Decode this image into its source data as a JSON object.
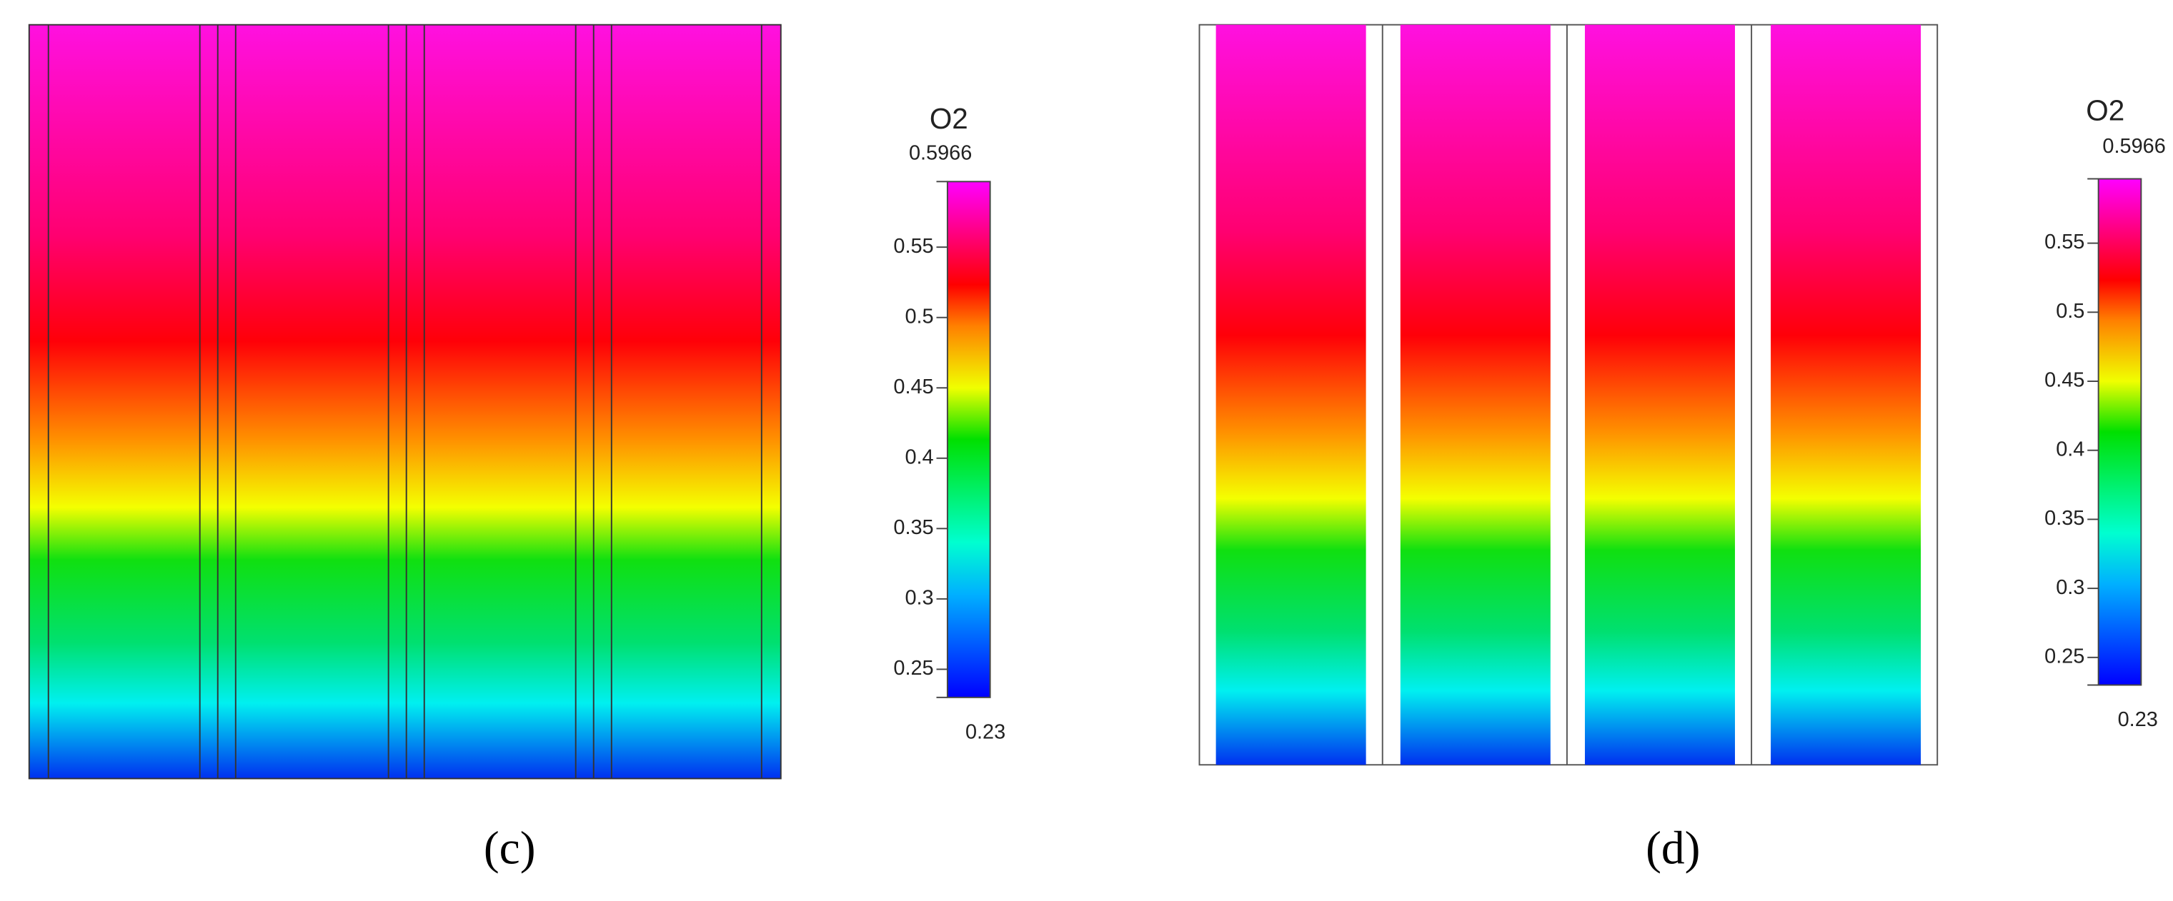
{
  "panels": [
    {
      "label": "(c)",
      "colorbar": {
        "title": "O2",
        "clim": [
          0.23,
          0.5966
        ],
        "ticks": [
          0.25,
          0.3,
          0.35,
          0.4,
          0.45,
          0.5,
          0.55
        ]
      }
    },
    {
      "label": "(d)",
      "colorbar": {
        "title": "O2",
        "clim": [
          0.23,
          0.5966
        ],
        "ticks": [
          0.25,
          0.3,
          0.35,
          0.4,
          0.45,
          0.5,
          0.55
        ]
      }
    }
  ]
}
